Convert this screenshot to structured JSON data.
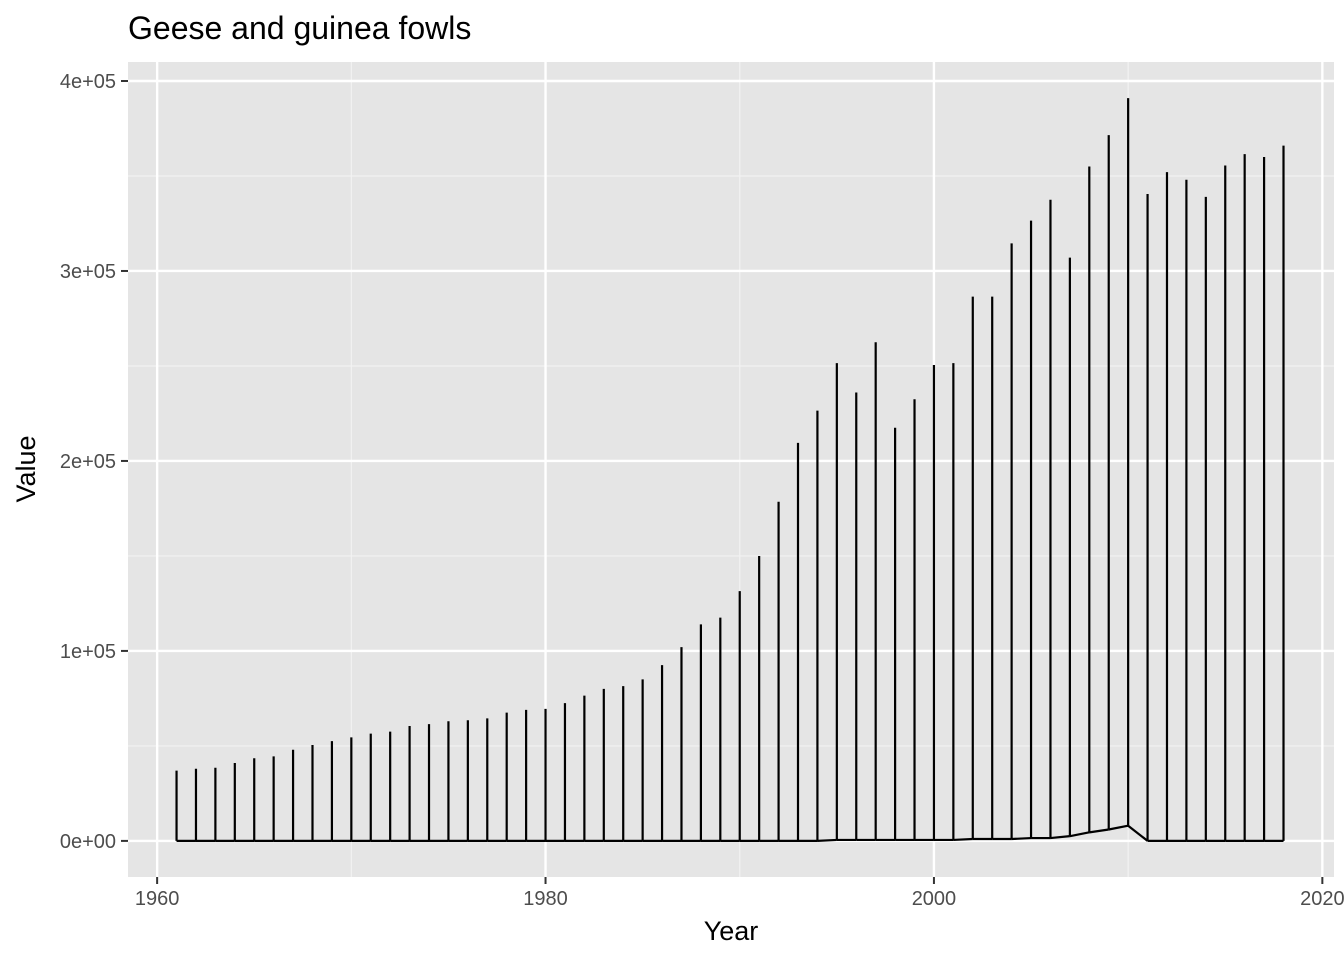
{
  "chart_data": {
    "type": "line",
    "title": "Geese and guinea fowls",
    "xlabel": "Year",
    "ylabel": "Value",
    "xlim": [
      1958.5,
      2020.6
    ],
    "ylim": [
      -19000,
      410000
    ],
    "x_ticks": [
      1960,
      1980,
      2000,
      2020
    ],
    "x_tick_labels": [
      "1960",
      "1980",
      "2000",
      "2020"
    ],
    "y_ticks": [
      0,
      100000,
      200000,
      300000,
      400000
    ],
    "y_tick_labels": [
      "0e+00",
      "1e+05",
      "2e+05",
      "3e+05",
      "4e+05"
    ],
    "grid": true,
    "legend": "none",
    "years": [
      1961,
      1962,
      1963,
      1964,
      1965,
      1966,
      1967,
      1968,
      1969,
      1970,
      1971,
      1972,
      1973,
      1974,
      1975,
      1976,
      1977,
      1978,
      1979,
      1980,
      1981,
      1982,
      1983,
      1984,
      1985,
      1986,
      1987,
      1988,
      1989,
      1990,
      1991,
      1992,
      1993,
      1994,
      1995,
      1996,
      1997,
      1998,
      1999,
      2000,
      2001,
      2002,
      2003,
      2004,
      2005,
      2006,
      2007,
      2008,
      2009,
      2010,
      2011,
      2012,
      2013,
      2014,
      2015,
      2016,
      2017,
      2018
    ],
    "peak_values": [
      37000,
      38000,
      38500,
      41000,
      43500,
      44500,
      48000,
      50500,
      52500,
      54500,
      56500,
      57500,
      60500,
      61500,
      63000,
      63500,
      64500,
      67500,
      69000,
      69500,
      72500,
      76500,
      80000,
      81500,
      85000,
      92500,
      102000,
      114000,
      117500,
      131500,
      150000,
      178500,
      209500,
      226500,
      251500,
      236000,
      262500,
      217500,
      232500,
      250500,
      251500,
      286500,
      286500,
      314500,
      326500,
      337500,
      307000,
      355000,
      371500,
      391000,
      340500,
      352000,
      348000,
      339000,
      355500,
      361500,
      360000,
      366000
    ],
    "baseline_values": [
      0,
      0,
      0,
      0,
      0,
      0,
      0,
      0,
      0,
      0,
      0,
      0,
      0,
      0,
      0,
      0,
      0,
      0,
      0,
      0,
      0,
      0,
      0,
      0,
      0,
      0,
      0,
      0,
      0,
      0,
      0,
      0,
      0,
      0,
      500,
      500,
      500,
      500,
      500,
      500,
      500,
      1000,
      1000,
      1000,
      1500,
      1500,
      2500,
      4500,
      6000,
      8000,
      0,
      0,
      0,
      0,
      0,
      0,
      0,
      0
    ]
  }
}
